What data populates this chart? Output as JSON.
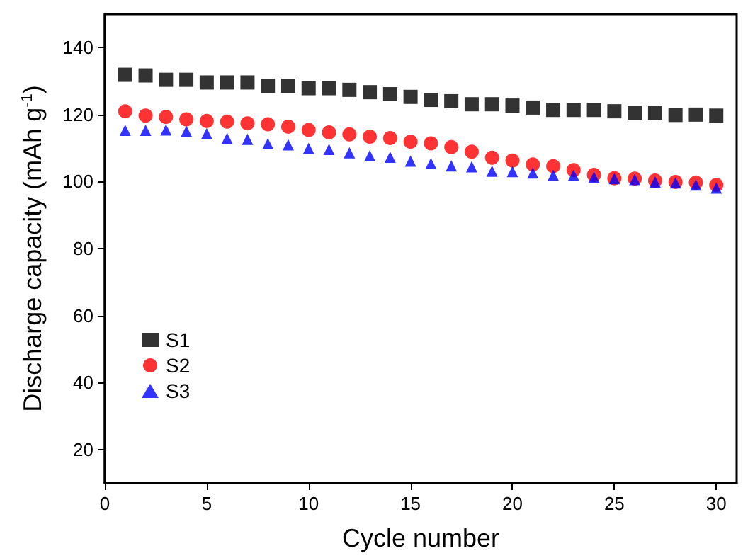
{
  "chart_data": {
    "type": "scatter",
    "xlabel": "Cycle number",
    "ylabel": "Discharge capacity (mAh g$^{-1}$)",
    "x": [
      1,
      2,
      3,
      4,
      5,
      6,
      7,
      8,
      9,
      10,
      11,
      12,
      13,
      14,
      15,
      16,
      17,
      18,
      19,
      20,
      21,
      22,
      23,
      24,
      25,
      26,
      27,
      28,
      29,
      30
    ],
    "series": [
      {
        "name": "S1",
        "color": "#000000",
        "marker": "square",
        "values": [
          131.9,
          131.7,
          130.4,
          130.4,
          129.6,
          129.6,
          129.6,
          128.6,
          128.6,
          127.9,
          127.9,
          127.4,
          126.7,
          126.1,
          125.3,
          124.4,
          124.0,
          123.1,
          123.1,
          122.7,
          122.1,
          121.4,
          121.4,
          121.4,
          121.0,
          120.6,
          120.6,
          119.9,
          120.0,
          119.7
        ]
      },
      {
        "name": "S2",
        "color": "#ff0000",
        "marker": "circle",
        "values": [
          121.0,
          119.7,
          119.3,
          118.6,
          118.1,
          117.9,
          117.4,
          117.1,
          116.4,
          115.4,
          114.7,
          114.1,
          113.4,
          113.0,
          111.9,
          111.4,
          110.3,
          108.9,
          107.1,
          106.3,
          105.1,
          104.6,
          103.4,
          102.0,
          101.0,
          100.9,
          100.3,
          99.9,
          99.7,
          99.0
        ]
      },
      {
        "name": "S3",
        "color": "#0000ff",
        "marker": "triangle",
        "values": [
          115.3,
          115.3,
          115.4,
          115.0,
          114.3,
          112.9,
          112.6,
          111.3,
          111.0,
          109.9,
          109.6,
          108.6,
          107.7,
          107.3,
          106.1,
          105.4,
          104.7,
          104.4,
          103.1,
          103.0,
          102.6,
          101.9,
          101.9,
          101.3,
          100.9,
          100.6,
          99.9,
          99.6,
          99.0,
          98.1
        ]
      }
    ],
    "xlim": [
      0,
      31
    ],
    "xticks": [
      0,
      5,
      10,
      15,
      20,
      25,
      30
    ],
    "ylim": [
      10,
      150
    ],
    "yticks": [
      20,
      40,
      60,
      80,
      100,
      120,
      140
    ],
    "grid": false,
    "legend": "left"
  }
}
